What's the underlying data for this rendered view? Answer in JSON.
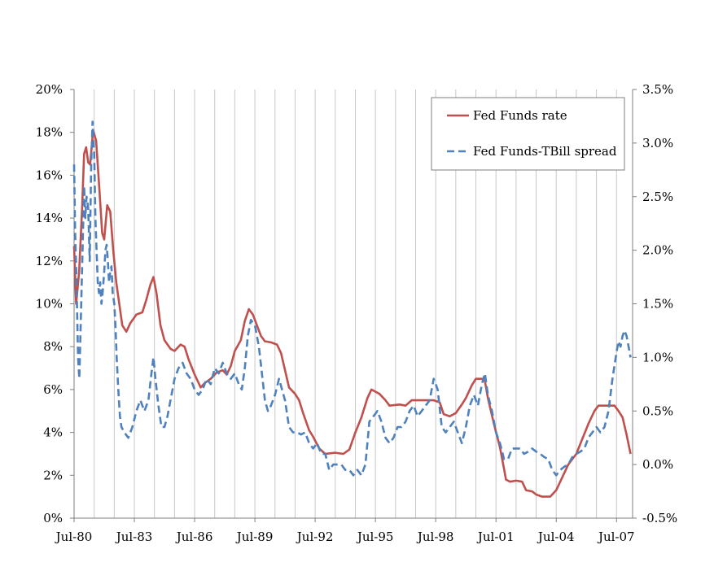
{
  "chart_data": {
    "type": "line",
    "grid": true,
    "legend_position": "top-right",
    "x_tick_labels": [
      "Jul-80",
      "Jul-83",
      "Jul-86",
      "Jul-89",
      "Jul-92",
      "Jul-95",
      "Jul-98",
      "Jul-01",
      "Jul-04",
      "Jul-07"
    ],
    "x_range": [
      1980.5,
      2008.3
    ],
    "y_left": {
      "range": [
        0,
        20
      ],
      "ticks": [
        0,
        2,
        4,
        6,
        8,
        10,
        12,
        14,
        16,
        18,
        20
      ],
      "tick_labels": [
        "0%",
        "2%",
        "4%",
        "6%",
        "8%",
        "10%",
        "12%",
        "14%",
        "16%",
        "18%",
        "20%"
      ]
    },
    "y_right": {
      "range": [
        -0.5,
        3.5
      ],
      "ticks": [
        -0.5,
        0.0,
        0.5,
        1.0,
        1.5,
        2.0,
        2.5,
        3.0,
        3.5
      ],
      "tick_labels": [
        "-0.5%",
        "0.0%",
        "0.5%",
        "1.0%",
        "1.5%",
        "2.0%",
        "2.5%",
        "3.0%",
        "3.5%"
      ]
    },
    "series": [
      {
        "name": "Fed Funds rate",
        "axis": "left",
        "color": "#c0504d",
        "style": "solid",
        "points": [
          [
            1980.5,
            12.7
          ],
          [
            1980.6,
            10.0
          ],
          [
            1980.75,
            11.5
          ],
          [
            1980.9,
            14.5
          ],
          [
            1981.0,
            17.0
          ],
          [
            1981.1,
            17.3
          ],
          [
            1981.2,
            16.6
          ],
          [
            1981.3,
            16.5
          ],
          [
            1981.45,
            18.1
          ],
          [
            1981.6,
            17.6
          ],
          [
            1981.75,
            15.5
          ],
          [
            1981.9,
            13.3
          ],
          [
            1982.0,
            13.0
          ],
          [
            1982.15,
            14.6
          ],
          [
            1982.3,
            14.3
          ],
          [
            1982.45,
            12.5
          ],
          [
            1982.6,
            11.0
          ],
          [
            1982.75,
            10.0
          ],
          [
            1982.9,
            9.0
          ],
          [
            1983.1,
            8.7
          ],
          [
            1983.3,
            9.1
          ],
          [
            1983.6,
            9.5
          ],
          [
            1983.9,
            9.6
          ],
          [
            1984.1,
            10.2
          ],
          [
            1984.3,
            10.9
          ],
          [
            1984.45,
            11.25
          ],
          [
            1984.6,
            10.5
          ],
          [
            1984.8,
            9.0
          ],
          [
            1985.0,
            8.3
          ],
          [
            1985.3,
            7.9
          ],
          [
            1985.5,
            7.8
          ],
          [
            1985.8,
            8.1
          ],
          [
            1986.0,
            8.0
          ],
          [
            1986.2,
            7.4
          ],
          [
            1986.5,
            6.7
          ],
          [
            1986.8,
            6.1
          ],
          [
            1987.0,
            6.3
          ],
          [
            1987.3,
            6.5
          ],
          [
            1987.6,
            6.8
          ],
          [
            1987.9,
            6.9
          ],
          [
            1988.1,
            6.7
          ],
          [
            1988.3,
            7.1
          ],
          [
            1988.5,
            7.8
          ],
          [
            1988.8,
            8.3
          ],
          [
            1989.0,
            9.2
          ],
          [
            1989.2,
            9.75
          ],
          [
            1989.4,
            9.5
          ],
          [
            1989.6,
            9.0
          ],
          [
            1989.8,
            8.5
          ],
          [
            1990.0,
            8.25
          ],
          [
            1990.3,
            8.2
          ],
          [
            1990.6,
            8.1
          ],
          [
            1990.8,
            7.7
          ],
          [
            1991.0,
            6.9
          ],
          [
            1991.2,
            6.1
          ],
          [
            1991.5,
            5.8
          ],
          [
            1991.7,
            5.5
          ],
          [
            1991.9,
            4.9
          ],
          [
            1992.2,
            4.1
          ],
          [
            1992.4,
            3.8
          ],
          [
            1992.7,
            3.25
          ],
          [
            1993.0,
            3.0
          ],
          [
            1993.5,
            3.05
          ],
          [
            1993.9,
            3.0
          ],
          [
            1994.2,
            3.2
          ],
          [
            1994.5,
            4.0
          ],
          [
            1994.8,
            4.7
          ],
          [
            1995.1,
            5.6
          ],
          [
            1995.3,
            6.0
          ],
          [
            1995.7,
            5.8
          ],
          [
            1996.0,
            5.5
          ],
          [
            1996.2,
            5.25
          ],
          [
            1996.7,
            5.3
          ],
          [
            1997.0,
            5.25
          ],
          [
            1997.3,
            5.5
          ],
          [
            1997.8,
            5.5
          ],
          [
            1998.4,
            5.5
          ],
          [
            1998.7,
            5.4
          ],
          [
            1998.9,
            4.85
          ],
          [
            1999.2,
            4.75
          ],
          [
            1999.5,
            4.9
          ],
          [
            1999.8,
            5.3
          ],
          [
            2000.0,
            5.6
          ],
          [
            2000.3,
            6.2
          ],
          [
            2000.5,
            6.5
          ],
          [
            2000.8,
            6.5
          ],
          [
            2000.95,
            6.4
          ],
          [
            2001.1,
            5.6
          ],
          [
            2001.4,
            4.4
          ],
          [
            2001.7,
            3.3
          ],
          [
            2001.9,
            2.3
          ],
          [
            2002.0,
            1.8
          ],
          [
            2002.2,
            1.7
          ],
          [
            2002.5,
            1.75
          ],
          [
            2002.8,
            1.7
          ],
          [
            2003.0,
            1.3
          ],
          [
            2003.3,
            1.25
          ],
          [
            2003.5,
            1.1
          ],
          [
            2003.8,
            1.0
          ],
          [
            2004.2,
            1.0
          ],
          [
            2004.5,
            1.3
          ],
          [
            2004.8,
            1.9
          ],
          [
            2005.1,
            2.5
          ],
          [
            2005.5,
            3.0
          ],
          [
            2005.8,
            3.7
          ],
          [
            2006.1,
            4.4
          ],
          [
            2006.4,
            5.0
          ],
          [
            2006.6,
            5.25
          ],
          [
            2007.0,
            5.25
          ],
          [
            2007.4,
            5.25
          ],
          [
            2007.6,
            5.0
          ],
          [
            2007.8,
            4.7
          ],
          [
            2008.0,
            3.9
          ],
          [
            2008.2,
            3.0
          ]
        ]
      },
      {
        "name": "Fed Funds-TBill spread",
        "axis": "right",
        "color": "#4f81bd",
        "style": "dashed",
        "points": [
          [
            1980.5,
            2.8
          ],
          [
            1980.55,
            2.2
          ],
          [
            1980.62,
            1.7
          ],
          [
            1980.7,
            1.0
          ],
          [
            1980.76,
            0.8
          ],
          [
            1980.83,
            1.3
          ],
          [
            1980.92,
            2.0
          ],
          [
            1981.0,
            2.6
          ],
          [
            1981.06,
            2.3
          ],
          [
            1981.12,
            2.5
          ],
          [
            1981.2,
            2.4
          ],
          [
            1981.28,
            1.9
          ],
          [
            1981.35,
            2.8
          ],
          [
            1981.42,
            3.2
          ],
          [
            1981.5,
            2.9
          ],
          [
            1981.56,
            2.3
          ],
          [
            1981.62,
            2.0
          ],
          [
            1981.68,
            1.7
          ],
          [
            1981.74,
            1.6
          ],
          [
            1981.8,
            1.7
          ],
          [
            1981.86,
            1.5
          ],
          [
            1981.92,
            1.6
          ],
          [
            1982.0,
            1.8
          ],
          [
            1982.06,
            2.0
          ],
          [
            1982.12,
            2.05
          ],
          [
            1982.18,
            1.9
          ],
          [
            1982.24,
            1.7
          ],
          [
            1982.3,
            1.8
          ],
          [
            1982.36,
            1.85
          ],
          [
            1982.42,
            1.6
          ],
          [
            1982.5,
            1.5
          ],
          [
            1982.56,
            1.3
          ],
          [
            1982.62,
            1.0
          ],
          [
            1982.7,
            0.7
          ],
          [
            1982.78,
            0.45
          ],
          [
            1982.86,
            0.35
          ],
          [
            1983.0,
            0.3
          ],
          [
            1983.2,
            0.25
          ],
          [
            1983.4,
            0.35
          ],
          [
            1983.6,
            0.5
          ],
          [
            1983.8,
            0.6
          ],
          [
            1984.0,
            0.5
          ],
          [
            1984.2,
            0.6
          ],
          [
            1984.35,
            0.85
          ],
          [
            1984.45,
            1.0
          ],
          [
            1984.55,
            0.8
          ],
          [
            1984.7,
            0.55
          ],
          [
            1984.85,
            0.35
          ],
          [
            1985.0,
            0.35
          ],
          [
            1985.15,
            0.45
          ],
          [
            1985.3,
            0.6
          ],
          [
            1985.5,
            0.8
          ],
          [
            1985.7,
            0.9
          ],
          [
            1985.9,
            0.95
          ],
          [
            1986.1,
            0.85
          ],
          [
            1986.3,
            0.8
          ],
          [
            1986.5,
            0.7
          ],
          [
            1986.7,
            0.65
          ],
          [
            1986.9,
            0.7
          ],
          [
            1987.1,
            0.8
          ],
          [
            1987.3,
            0.75
          ],
          [
            1987.5,
            0.9
          ],
          [
            1987.7,
            0.85
          ],
          [
            1987.9,
            0.95
          ],
          [
            1988.1,
            0.85
          ],
          [
            1988.3,
            0.8
          ],
          [
            1988.5,
            0.85
          ],
          [
            1988.7,
            0.75
          ],
          [
            1988.85,
            0.7
          ],
          [
            1989.0,
            0.9
          ],
          [
            1989.15,
            1.2
          ],
          [
            1989.3,
            1.35
          ],
          [
            1989.5,
            1.3
          ],
          [
            1989.7,
            1.1
          ],
          [
            1989.85,
            0.85
          ],
          [
            1990.0,
            0.6
          ],
          [
            1990.15,
            0.5
          ],
          [
            1990.3,
            0.55
          ],
          [
            1990.5,
            0.65
          ],
          [
            1990.7,
            0.8
          ],
          [
            1990.85,
            0.7
          ],
          [
            1991.0,
            0.6
          ],
          [
            1991.2,
            0.35
          ],
          [
            1991.4,
            0.3
          ],
          [
            1991.6,
            0.3
          ],
          [
            1991.8,
            0.28
          ],
          [
            1992.0,
            0.3
          ],
          [
            1992.2,
            0.2
          ],
          [
            1992.4,
            0.15
          ],
          [
            1992.6,
            0.2
          ],
          [
            1992.8,
            0.1
          ],
          [
            1993.0,
            0.1
          ],
          [
            1993.2,
            -0.05
          ],
          [
            1993.4,
            0.0
          ],
          [
            1993.6,
            0.0
          ],
          [
            1993.8,
            0.0
          ],
          [
            1994.0,
            -0.05
          ],
          [
            1994.2,
            -0.05
          ],
          [
            1994.4,
            -0.1
          ],
          [
            1994.6,
            -0.05
          ],
          [
            1994.8,
            -0.1
          ],
          [
            1995.0,
            0.0
          ],
          [
            1995.1,
            0.2
          ],
          [
            1995.2,
            0.4
          ],
          [
            1995.4,
            0.45
          ],
          [
            1995.6,
            0.5
          ],
          [
            1995.8,
            0.4
          ],
          [
            1996.0,
            0.25
          ],
          [
            1996.2,
            0.2
          ],
          [
            1996.4,
            0.25
          ],
          [
            1996.6,
            0.35
          ],
          [
            1996.8,
            0.35
          ],
          [
            1997.0,
            0.4
          ],
          [
            1997.2,
            0.5
          ],
          [
            1997.4,
            0.55
          ],
          [
            1997.6,
            0.45
          ],
          [
            1997.8,
            0.5
          ],
          [
            1998.0,
            0.55
          ],
          [
            1998.2,
            0.6
          ],
          [
            1998.4,
            0.8
          ],
          [
            1998.6,
            0.7
          ],
          [
            1998.8,
            0.35
          ],
          [
            1999.0,
            0.3
          ],
          [
            1999.2,
            0.35
          ],
          [
            1999.4,
            0.4
          ],
          [
            1999.6,
            0.3
          ],
          [
            1999.8,
            0.2
          ],
          [
            2000.0,
            0.35
          ],
          [
            2000.2,
            0.55
          ],
          [
            2000.4,
            0.65
          ],
          [
            2000.6,
            0.55
          ],
          [
            2000.8,
            0.75
          ],
          [
            2000.95,
            0.85
          ],
          [
            2001.1,
            0.65
          ],
          [
            2001.3,
            0.5
          ],
          [
            2001.5,
            0.3
          ],
          [
            2001.7,
            0.2
          ],
          [
            2001.9,
            0.05
          ],
          [
            2002.1,
            0.05
          ],
          [
            2002.3,
            0.15
          ],
          [
            2002.5,
            0.15
          ],
          [
            2002.7,
            0.15
          ],
          [
            2002.9,
            0.1
          ],
          [
            2003.1,
            0.12
          ],
          [
            2003.3,
            0.15
          ],
          [
            2003.5,
            0.12
          ],
          [
            2003.7,
            0.1
          ],
          [
            2003.9,
            0.07
          ],
          [
            2004.1,
            0.05
          ],
          [
            2004.3,
            -0.05
          ],
          [
            2004.5,
            -0.1
          ],
          [
            2004.7,
            -0.05
          ],
          [
            2004.9,
            -0.02
          ],
          [
            2005.1,
            0.0
          ],
          [
            2005.3,
            0.07
          ],
          [
            2005.5,
            0.1
          ],
          [
            2005.7,
            0.12
          ],
          [
            2005.9,
            0.15
          ],
          [
            2006.1,
            0.25
          ],
          [
            2006.3,
            0.3
          ],
          [
            2006.5,
            0.35
          ],
          [
            2006.7,
            0.3
          ],
          [
            2006.9,
            0.35
          ],
          [
            2007.1,
            0.5
          ],
          [
            2007.3,
            0.8
          ],
          [
            2007.5,
            1.05
          ],
          [
            2007.6,
            1.15
          ],
          [
            2007.7,
            1.1
          ],
          [
            2007.8,
            1.2
          ],
          [
            2007.9,
            1.25
          ],
          [
            2008.0,
            1.2
          ],
          [
            2008.1,
            1.1
          ],
          [
            2008.2,
            1.0
          ]
        ]
      }
    ]
  }
}
